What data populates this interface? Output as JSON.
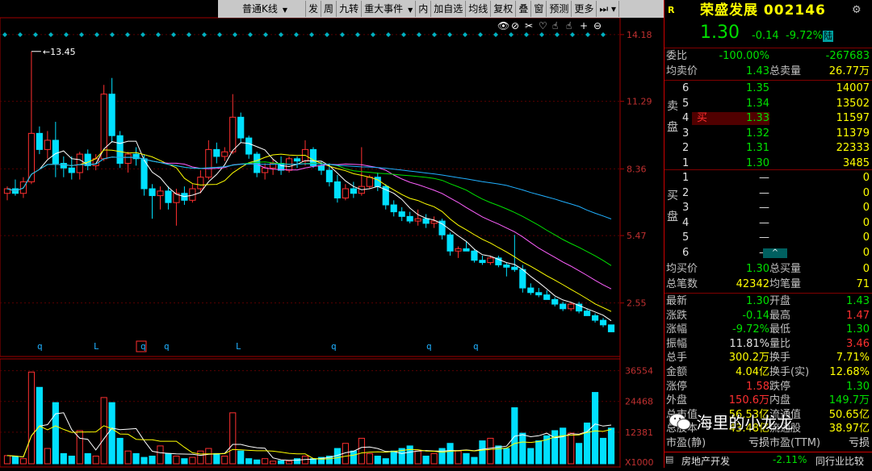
{
  "toolbar": {
    "items": [
      "普通K线",
      "发",
      "周",
      "九转",
      "重大事件",
      "内",
      "加自选",
      "均线",
      "复权",
      "叠",
      "窗",
      "预测",
      "更多"
    ]
  },
  "chart_data": {
    "type": "candlestick",
    "price_axis_ticks": [
      "14.18",
      "11.29",
      "8.36",
      "5.47",
      "2.55"
    ],
    "volume_axis_ticks": [
      "36554",
      "24468",
      "12381",
      "X1000"
    ],
    "max_label": "13.45",
    "marker_labels": [
      "q",
      "L",
      "q",
      "q",
      "L",
      "q",
      "q",
      "q",
      "L"
    ],
    "candles": [
      [
        7.3,
        7.6,
        7.0,
        7.5
      ],
      [
        7.5,
        7.9,
        7.2,
        7.3
      ],
      [
        7.3,
        8.0,
        7.1,
        7.8
      ],
      [
        7.8,
        13.45,
        7.7,
        9.9
      ],
      [
        9.9,
        10.2,
        9.0,
        9.2
      ],
      [
        9.2,
        10.0,
        8.8,
        9.6
      ],
      [
        9.6,
        10.4,
        8.0,
        8.6
      ],
      [
        8.6,
        8.9,
        8.0,
        8.4
      ],
      [
        8.4,
        8.9,
        7.9,
        8.2
      ],
      [
        8.2,
        9.1,
        7.9,
        9.0
      ],
      [
        9.0,
        9.2,
        8.3,
        8.5
      ],
      [
        8.5,
        9.0,
        8.3,
        8.8
      ],
      [
        8.8,
        12.0,
        8.7,
        11.6
      ],
      [
        11.6,
        12.3,
        9.5,
        9.8
      ],
      [
        9.8,
        10.0,
        8.4,
        8.6
      ],
      [
        8.6,
        9.1,
        8.2,
        9.0
      ],
      [
        9.0,
        9.3,
        8.5,
        8.8
      ],
      [
        8.8,
        9.0,
        7.2,
        7.5
      ],
      [
        7.5,
        7.7,
        6.2,
        7.2
      ],
      [
        7.2,
        7.6,
        6.6,
        7.4
      ],
      [
        7.4,
        7.6,
        6.6,
        6.9
      ],
      [
        6.9,
        7.5,
        5.9,
        7.3
      ],
      [
        7.3,
        7.6,
        6.8,
        7.0
      ],
      [
        7.0,
        7.7,
        6.9,
        7.5
      ],
      [
        7.5,
        8.3,
        7.3,
        8.0
      ],
      [
        8.0,
        9.6,
        7.9,
        9.2
      ],
      [
        9.2,
        9.5,
        8.6,
        8.9
      ],
      [
        8.9,
        9.3,
        8.7,
        9.1
      ],
      [
        9.1,
        11.6,
        9.0,
        10.6
      ],
      [
        10.6,
        10.8,
        9.5,
        9.7
      ],
      [
        9.7,
        9.8,
        8.8,
        9.0
      ],
      [
        9.0,
        9.1,
        8.0,
        8.2
      ],
      [
        8.2,
        8.6,
        7.9,
        8.4
      ],
      [
        8.4,
        8.8,
        8.1,
        8.6
      ],
      [
        8.6,
        8.9,
        8.1,
        8.3
      ],
      [
        8.3,
        8.9,
        8.2,
        8.8
      ],
      [
        8.8,
        8.9,
        8.4,
        8.7
      ],
      [
        8.7,
        9.6,
        8.5,
        9.2
      ],
      [
        9.2,
        9.3,
        8.4,
        8.5
      ],
      [
        8.5,
        8.7,
        8.1,
        8.3
      ],
      [
        8.3,
        8.6,
        7.6,
        7.8
      ],
      [
        7.8,
        8.1,
        6.9,
        7.1
      ],
      [
        7.1,
        7.7,
        7.0,
        7.5
      ],
      [
        7.5,
        7.8,
        7.1,
        7.3
      ],
      [
        7.3,
        9.3,
        7.2,
        7.6
      ],
      [
        7.6,
        8.1,
        7.5,
        8.0
      ],
      [
        8.0,
        8.2,
        7.4,
        7.6
      ],
      [
        7.6,
        7.7,
        6.6,
        6.8
      ],
      [
        6.8,
        7.0,
        6.3,
        6.5
      ],
      [
        6.5,
        6.7,
        6.1,
        6.3
      ],
      [
        6.3,
        6.5,
        6.0,
        6.1
      ],
      [
        6.1,
        6.6,
        5.9,
        6.2
      ],
      [
        6.2,
        6.4,
        5.8,
        6.0
      ],
      [
        6.0,
        6.3,
        5.8,
        6.1
      ],
      [
        6.1,
        6.2,
        5.3,
        5.5
      ],
      [
        5.5,
        5.6,
        4.6,
        4.8
      ],
      [
        4.8,
        5.0,
        4.5,
        4.9
      ],
      [
        4.9,
        5.2,
        4.8,
        4.8
      ],
      [
        4.8,
        4.9,
        4.3,
        4.4
      ],
      [
        4.4,
        4.6,
        4.2,
        4.3
      ],
      [
        4.3,
        4.6,
        4.2,
        4.5
      ],
      [
        4.5,
        4.6,
        4.1,
        4.2
      ],
      [
        4.2,
        4.3,
        3.7,
        4.1
      ],
      [
        4.1,
        5.5,
        3.9,
        4.0
      ],
      [
        4.0,
        4.2,
        3.0,
        3.2
      ],
      [
        3.2,
        3.4,
        2.9,
        3.0
      ],
      [
        3.0,
        3.2,
        2.8,
        2.9
      ],
      [
        2.9,
        3.1,
        2.7,
        2.7
      ],
      [
        2.7,
        2.8,
        2.4,
        2.5
      ],
      [
        2.5,
        2.6,
        2.2,
        2.3
      ],
      [
        2.3,
        2.6,
        2.2,
        2.5
      ],
      [
        2.5,
        2.6,
        2.1,
        2.2
      ],
      [
        2.2,
        2.3,
        2.0,
        2.0
      ],
      [
        2.0,
        2.1,
        1.7,
        1.8
      ],
      [
        1.8,
        1.9,
        1.5,
        1.6
      ],
      [
        1.6,
        1.6,
        1.3,
        1.3
      ]
    ],
    "volumes": [
      3.2,
      2.8,
      2.0,
      36.0,
      30.0,
      6.0,
      24.0,
      4.0,
      3.0,
      13.0,
      4.0,
      3.0,
      26.0,
      24.0,
      10.0,
      5.0,
      4.0,
      2.5,
      3.0,
      7.0,
      4.0,
      3.0,
      2.0,
      2.5,
      5.0,
      6.0,
      4.0,
      3.0,
      20.0,
      5.0,
      2.0,
      1.5,
      2.0,
      1.0,
      1.2,
      1.0,
      2.0,
      3.0,
      2.0,
      2.5,
      3.0,
      6.0,
      8.0,
      5.0,
      10.0,
      4.0,
      3.0,
      2.0,
      5.0,
      6.0,
      7.0,
      5.0,
      3.0,
      4.0,
      6.0,
      8.0,
      5.0,
      4.0,
      2.5,
      9.0,
      10.0,
      7.0,
      6.0,
      22.0,
      12.0,
      6.0,
      9.0,
      11.0,
      13.0,
      14.0,
      12.0,
      8.0,
      16.0,
      28.0,
      10.0,
      14.0
    ]
  },
  "quote": {
    "logo": "R",
    "title": "荣盛发展 002146",
    "price": "1.30",
    "change": "-0.14",
    "change_pct": "-9.72%",
    "tag": "陆",
    "weibi": {
      "label": "委比",
      "value": "-100.00%",
      "value2": "-267683"
    },
    "junmai": {
      "label": "均卖价",
      "value": "1.43",
      "label2": "总卖量",
      "value2": "26.77万"
    },
    "sell_side_label": "卖盘",
    "sell_rows": [
      {
        "lvl": "6",
        "price": "1.35",
        "vol": "14007"
      },
      {
        "lvl": "5",
        "price": "1.34",
        "vol": "13502"
      },
      {
        "lvl": "4",
        "mark": "买",
        "price": "1.33",
        "vol": "11597"
      },
      {
        "lvl": "3",
        "price": "1.32",
        "vol": "11379"
      },
      {
        "lvl": "2",
        "price": "1.31",
        "vol": "22333"
      },
      {
        "lvl": "1",
        "price": "1.30",
        "vol": "3485"
      }
    ],
    "buy_side_label": "买盘",
    "buy_rows": [
      {
        "lvl": "1",
        "price": "—",
        "vol": "0"
      },
      {
        "lvl": "2",
        "price": "—",
        "vol": "0"
      },
      {
        "lvl": "3",
        "price": "—",
        "vol": "0"
      },
      {
        "lvl": "4",
        "price": "—",
        "vol": "0"
      },
      {
        "lvl": "5",
        "price": "—",
        "vol": "0"
      },
      {
        "lvl": "6",
        "price": "—",
        "vol": "0"
      }
    ],
    "junmaijia": {
      "label": "均买价",
      "value": "1.30",
      "label2": "总买量",
      "value2": "0"
    },
    "zongbishu": {
      "label": "总笔数",
      "value": "42342",
      "label2": "均笔量",
      "value2": "71"
    },
    "stats": [
      {
        "l1": "最新",
        "v1": "1.30",
        "c1": "g",
        "l2": "开盘",
        "v2": "1.43",
        "c2": "g"
      },
      {
        "l1": "涨跌",
        "v1": "-0.14",
        "c1": "g",
        "l2": "最高",
        "v2": "1.47",
        "c2": "r"
      },
      {
        "l1": "涨幅",
        "v1": "-9.72%",
        "c1": "g",
        "l2": "最低",
        "v2": "1.30",
        "c2": "g"
      },
      {
        "l1": "振幅",
        "v1": "11.81%",
        "c1": "w",
        "l2": "量比",
        "v2": "3.46",
        "c2": "r"
      },
      {
        "l1": "总手",
        "v1": "300.2万",
        "c1": "y",
        "l2": "换手",
        "v2": "7.71%",
        "c2": "y"
      },
      {
        "l1": "金额",
        "v1": "4.04亿",
        "c1": "y",
        "l2": "换手(实)",
        "v2": "12.68%",
        "c2": "y"
      },
      {
        "l1": "涨停",
        "v1": "1.58",
        "c1": "r",
        "l2": "跌停",
        "v2": "1.30",
        "c2": "g"
      },
      {
        "l1": "外盘",
        "v1": "150.6万",
        "c1": "r",
        "l2": "内盘",
        "v2": "149.7万",
        "c2": "g"
      },
      {
        "l1": "总市值",
        "v1": "56.53亿",
        "c1": "y",
        "l2": "流通值",
        "v2": "50.65亿",
        "c2": "y"
      },
      {
        "l1": "总股本",
        "v1": "43.48亿",
        "c1": "y",
        "l2": "流通股",
        "v2": "38.97亿",
        "c2": "y"
      },
      {
        "l1": "市盈(静)",
        "v1": "亏损",
        "c1": "w",
        "l2": "市盈(TTM)",
        "v2": "亏损",
        "c2": "w"
      }
    ],
    "industry": "房地产开发",
    "industry_change": "-2.11%",
    "compare": "同行业比较"
  },
  "watermark": "海里的小龙龙"
}
